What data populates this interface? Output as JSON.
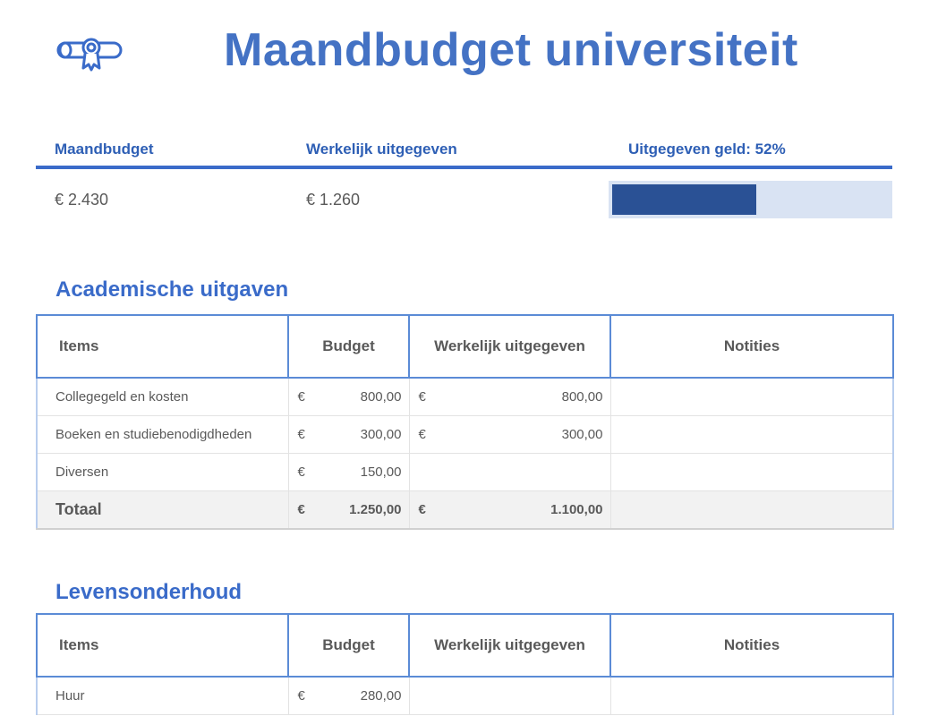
{
  "title": "Maandbudget universiteit",
  "summary": {
    "budget_label": "Maandbudget",
    "spent_label": "Werkelijk uitgegeven",
    "progress_label": "Uitgegeven geld: 52%",
    "budget_value": "€ 2.430",
    "spent_value": "€ 1.260",
    "progress_fraction": 0.52
  },
  "academic": {
    "title": "Academische uitgaven",
    "headers": [
      "Items",
      "Budget",
      "Werkelijk uitgegeven",
      "Notities"
    ],
    "rows": [
      {
        "item": "Collegegeld en kosten",
        "budget_cur": "€",
        "budget": "800,00",
        "spent_cur": "€",
        "spent": "800,00",
        "notes": ""
      },
      {
        "item": "Boeken en studiebenodigdheden",
        "budget_cur": "€",
        "budget": "300,00",
        "spent_cur": "€",
        "spent": "300,00",
        "notes": ""
      },
      {
        "item": "Diversen",
        "budget_cur": "€",
        "budget": "150,00",
        "spent_cur": "",
        "spent": "",
        "notes": ""
      }
    ],
    "total": {
      "item": "Totaal",
      "budget_cur": "€",
      "budget": "1.250,00",
      "spent_cur": "€",
      "spent": "1.100,00",
      "notes": ""
    }
  },
  "living": {
    "title": "Levensonderhoud",
    "headers": [
      "Items",
      "Budget",
      "Werkelijk uitgegeven",
      "Notities"
    ],
    "rows": [
      {
        "item": "Huur",
        "budget_cur": "€",
        "budget": "280,00",
        "spent_cur": "",
        "spent": "",
        "notes": ""
      }
    ]
  },
  "colors": {
    "accent": "#4472c4",
    "bar": "#2a5195",
    "track": "#d9e3f3"
  }
}
